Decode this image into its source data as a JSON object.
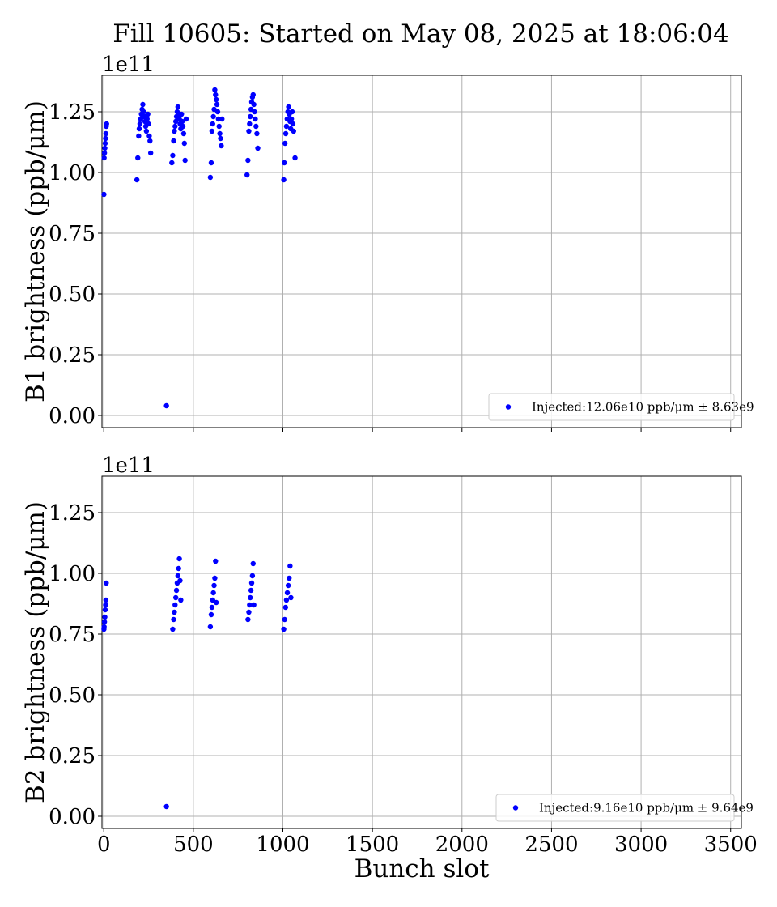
{
  "title": "Fill 10605: Started on May 08, 2025 at 18:06:04",
  "colors": {
    "points": "#0000ff",
    "grid": "#b0b0b0",
    "axes": "#000000",
    "legend_border": "#cccccc"
  },
  "chart_data": [
    {
      "type": "scatter",
      "ylabel": "B1 brightness (ppb/μm)",
      "offset_label": "1e11",
      "xlim": [
        -10,
        3560
      ],
      "ylim": [
        -0.05,
        1.4
      ],
      "x_ticks": [
        0,
        500,
        1000,
        1500,
        2000,
        2500,
        3000,
        3500
      ],
      "x_tick_labels": [
        "0",
        "500",
        "1000",
        "1500",
        "2000",
        "2500",
        "3000",
        "3500"
      ],
      "show_x_tick_labels": false,
      "y_ticks": [
        0,
        0.25,
        0.5,
        0.75,
        1.0,
        1.25
      ],
      "y_tick_labels": [
        "0.00",
        "0.25",
        "0.50",
        "0.75",
        "1.00",
        "1.25"
      ],
      "grid": true,
      "legend_position": "lower-right",
      "legend_label": "Injected:12.06e10 ppb/μm ± 8.63e9",
      "series": [
        {
          "name": "Injected",
          "x": [
            1,
            2,
            4,
            6,
            8,
            10,
            12,
            14,
            16,
            185,
            190,
            195,
            198,
            202,
            206,
            210,
            214,
            218,
            222,
            226,
            230,
            234,
            238,
            242,
            246,
            250,
            254,
            258,
            262,
            350,
            380,
            385,
            390,
            394,
            398,
            402,
            406,
            410,
            414,
            418,
            422,
            426,
            430,
            434,
            438,
            442,
            446,
            450,
            454,
            460,
            595,
            600,
            604,
            608,
            612,
            616,
            620,
            624,
            628,
            632,
            636,
            640,
            644,
            648,
            652,
            656,
            660,
            800,
            805,
            810,
            814,
            818,
            822,
            826,
            830,
            834,
            838,
            842,
            846,
            850,
            855,
            860,
            1005,
            1008,
            1012,
            1016,
            1020,
            1024,
            1028,
            1032,
            1036,
            1040,
            1044,
            1048,
            1052,
            1056,
            1060,
            1068
          ],
          "y": [
            0.91,
            1.06,
            1.08,
            1.1,
            1.12,
            1.14,
            1.16,
            1.19,
            1.2,
            0.97,
            1.06,
            1.15,
            1.18,
            1.2,
            1.22,
            1.24,
            1.26,
            1.28,
            1.25,
            1.23,
            1.21,
            1.19,
            1.17,
            1.22,
            1.24,
            1.2,
            1.15,
            1.13,
            1.08,
            0.04,
            1.04,
            1.07,
            1.13,
            1.17,
            1.19,
            1.21,
            1.23,
            1.25,
            1.27,
            1.24,
            1.22,
            1.2,
            1.18,
            1.24,
            1.21,
            1.19,
            1.16,
            1.12,
            1.05,
            1.22,
            0.98,
            1.04,
            1.17,
            1.2,
            1.23,
            1.26,
            1.34,
            1.32,
            1.3,
            1.28,
            1.25,
            1.22,
            1.19,
            1.16,
            1.14,
            1.11,
            1.22,
            0.99,
            1.05,
            1.17,
            1.2,
            1.23,
            1.26,
            1.29,
            1.31,
            1.32,
            1.28,
            1.25,
            1.22,
            1.19,
            1.16,
            1.1,
            0.97,
            1.04,
            1.12,
            1.16,
            1.19,
            1.22,
            1.25,
            1.27,
            1.24,
            1.21,
            1.18,
            1.22,
            1.25,
            1.2,
            1.17,
            1.06
          ]
        }
      ]
    },
    {
      "type": "scatter",
      "ylabel": "B2 brightness (ppb/μm)",
      "offset_label": "1e11",
      "xlabel": "Bunch slot",
      "xlim": [
        -10,
        3560
      ],
      "ylim": [
        -0.05,
        1.4
      ],
      "x_ticks": [
        0,
        500,
        1000,
        1500,
        2000,
        2500,
        3000,
        3500
      ],
      "x_tick_labels": [
        "0",
        "500",
        "1000",
        "1500",
        "2000",
        "2500",
        "3000",
        "3500"
      ],
      "show_x_tick_labels": true,
      "y_ticks": [
        0,
        0.25,
        0.5,
        0.75,
        1.0,
        1.25
      ],
      "y_tick_labels": [
        "0.00",
        "0.25",
        "0.50",
        "0.75",
        "1.00",
        "1.25"
      ],
      "grid": true,
      "legend_position": "lower-right",
      "legend_label": "Injected:9.16e10 ppb/μm ± 9.64e9",
      "series": [
        {
          "name": "Injected",
          "x": [
            1,
            2,
            4,
            6,
            8,
            10,
            12,
            14,
            350,
            385,
            390,
            394,
            398,
            402,
            406,
            410,
            414,
            418,
            422,
            426,
            430,
            595,
            600,
            604,
            608,
            612,
            616,
            620,
            624,
            628,
            805,
            810,
            814,
            818,
            822,
            826,
            830,
            834,
            838,
            1005,
            1010,
            1015,
            1020,
            1025,
            1030,
            1035,
            1040,
            1045
          ],
          "y": [
            0.77,
            0.78,
            0.8,
            0.82,
            0.85,
            0.87,
            0.89,
            0.96,
            0.04,
            0.77,
            0.81,
            0.84,
            0.87,
            0.9,
            0.93,
            0.96,
            0.99,
            1.02,
            1.06,
            0.97,
            0.89,
            0.78,
            0.83,
            0.86,
            0.89,
            0.92,
            0.95,
            0.98,
            1.05,
            0.88,
            0.81,
            0.84,
            0.87,
            0.9,
            0.93,
            0.96,
            0.99,
            1.04,
            0.87,
            0.77,
            0.81,
            0.86,
            0.89,
            0.92,
            0.95,
            0.98,
            1.03,
            0.9
          ]
        }
      ]
    }
  ]
}
